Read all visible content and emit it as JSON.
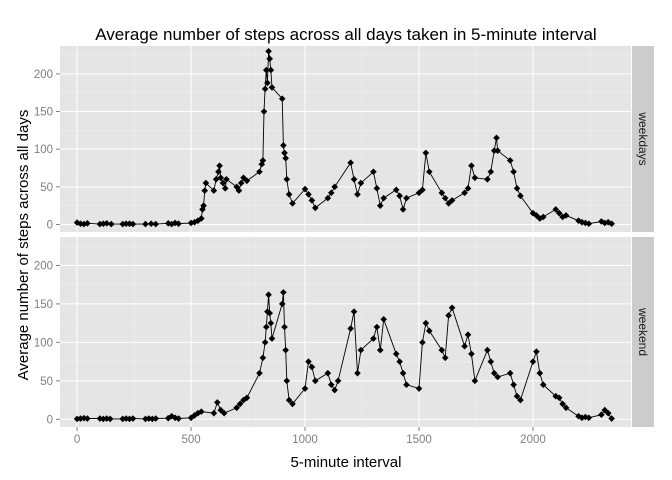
{
  "chart_data": {
    "type": "line",
    "title": "Average number of steps across all days taken in 5-minute interval",
    "xlabel": "5-minute interval",
    "ylabel": "Average number of steps across all days",
    "xlim": [
      -75,
      2430
    ],
    "ylim": [
      -10,
      237
    ],
    "x_ticks": [
      0,
      500,
      1000,
      1500,
      2000
    ],
    "y_ticks": [
      0,
      50,
      100,
      150,
      200
    ],
    "grid": true,
    "markers": "diamond",
    "colors": {
      "panel_bg": "#e5e5e5",
      "grid": "#f2f2f2",
      "strip_bg": "#cccccc",
      "line": "#000000"
    },
    "panels": [
      {
        "name": "weekdays",
        "points": [
          [
            0,
            2.5
          ],
          [
            15,
            1
          ],
          [
            30,
            0.5
          ],
          [
            45,
            1.5
          ],
          [
            100,
            0.5
          ],
          [
            115,
            1
          ],
          [
            130,
            1.5
          ],
          [
            150,
            0.5
          ],
          [
            200,
            0.5
          ],
          [
            215,
            1
          ],
          [
            230,
            1
          ],
          [
            245,
            0.5
          ],
          [
            300,
            0.5
          ],
          [
            325,
            1
          ],
          [
            345,
            0.5
          ],
          [
            400,
            1.5
          ],
          [
            415,
            0.5
          ],
          [
            430,
            2
          ],
          [
            445,
            1
          ],
          [
            500,
            2
          ],
          [
            515,
            3
          ],
          [
            530,
            5
          ],
          [
            545,
            8
          ],
          [
            550,
            20
          ],
          [
            555,
            25
          ],
          [
            560,
            45
          ],
          [
            565,
            55
          ],
          [
            600,
            45
          ],
          [
            610,
            60
          ],
          [
            620,
            70
          ],
          [
            625,
            78
          ],
          [
            630,
            62
          ],
          [
            640,
            55
          ],
          [
            650,
            48
          ],
          [
            655,
            60
          ],
          [
            700,
            50
          ],
          [
            710,
            45
          ],
          [
            720,
            55
          ],
          [
            730,
            62
          ],
          [
            745,
            58
          ],
          [
            800,
            70
          ],
          [
            810,
            80
          ],
          [
            815,
            85
          ],
          [
            820,
            150
          ],
          [
            825,
            180
          ],
          [
            830,
            205
          ],
          [
            835,
            188
          ],
          [
            840,
            230
          ],
          [
            845,
            220
          ],
          [
            850,
            205
          ],
          [
            855,
            182
          ],
          [
            900,
            167
          ],
          [
            905,
            105
          ],
          [
            910,
            95
          ],
          [
            915,
            88
          ],
          [
            920,
            60
          ],
          [
            930,
            40
          ],
          [
            945,
            28
          ],
          [
            1000,
            47
          ],
          [
            1015,
            40
          ],
          [
            1030,
            32
          ],
          [
            1045,
            22
          ],
          [
            1100,
            35
          ],
          [
            1115,
            42
          ],
          [
            1130,
            50
          ],
          [
            1200,
            82
          ],
          [
            1215,
            60
          ],
          [
            1230,
            40
          ],
          [
            1245,
            55
          ],
          [
            1300,
            70
          ],
          [
            1315,
            48
          ],
          [
            1330,
            25
          ],
          [
            1345,
            35
          ],
          [
            1400,
            46
          ],
          [
            1415,
            38
          ],
          [
            1430,
            20
          ],
          [
            1445,
            35
          ],
          [
            1500,
            42
          ],
          [
            1515,
            46
          ],
          [
            1530,
            95
          ],
          [
            1545,
            70
          ],
          [
            1600,
            42
          ],
          [
            1615,
            35
          ],
          [
            1630,
            28
          ],
          [
            1645,
            32
          ],
          [
            1700,
            42
          ],
          [
            1715,
            48
          ],
          [
            1730,
            78
          ],
          [
            1745,
            62
          ],
          [
            1800,
            60
          ],
          [
            1815,
            70
          ],
          [
            1830,
            98
          ],
          [
            1840,
            115
          ],
          [
            1845,
            98
          ],
          [
            1900,
            85
          ],
          [
            1915,
            70
          ],
          [
            1930,
            48
          ],
          [
            1945,
            38
          ],
          [
            2000,
            15
          ],
          [
            2015,
            12
          ],
          [
            2030,
            8
          ],
          [
            2045,
            10
          ],
          [
            2100,
            20
          ],
          [
            2115,
            15
          ],
          [
            2130,
            10
          ],
          [
            2145,
            12
          ],
          [
            2200,
            5
          ],
          [
            2215,
            3
          ],
          [
            2230,
            2
          ],
          [
            2245,
            1
          ],
          [
            2300,
            4
          ],
          [
            2315,
            2
          ],
          [
            2330,
            3
          ],
          [
            2345,
            1
          ]
        ]
      },
      {
        "name": "weekend",
        "points": [
          [
            0,
            0.5
          ],
          [
            15,
            1
          ],
          [
            30,
            1.5
          ],
          [
            45,
            1
          ],
          [
            100,
            1
          ],
          [
            115,
            0.5
          ],
          [
            130,
            1
          ],
          [
            145,
            0.5
          ],
          [
            200,
            0.5
          ],
          [
            215,
            1
          ],
          [
            230,
            0.5
          ],
          [
            245,
            1
          ],
          [
            300,
            0.5
          ],
          [
            315,
            1
          ],
          [
            330,
            0.5
          ],
          [
            345,
            1
          ],
          [
            400,
            1.5
          ],
          [
            415,
            4
          ],
          [
            430,
            2
          ],
          [
            445,
            1
          ],
          [
            500,
            2
          ],
          [
            515,
            5
          ],
          [
            530,
            8
          ],
          [
            545,
            10
          ],
          [
            600,
            8
          ],
          [
            615,
            22
          ],
          [
            630,
            12
          ],
          [
            645,
            8
          ],
          [
            700,
            15
          ],
          [
            715,
            20
          ],
          [
            730,
            25
          ],
          [
            745,
            28
          ],
          [
            800,
            60
          ],
          [
            815,
            80
          ],
          [
            825,
            100
          ],
          [
            830,
            120
          ],
          [
            835,
            140
          ],
          [
            840,
            162
          ],
          [
            845,
            138
          ],
          [
            850,
            125
          ],
          [
            855,
            105
          ],
          [
            900,
            150
          ],
          [
            905,
            165
          ],
          [
            910,
            120
          ],
          [
            915,
            90
          ],
          [
            920,
            50
          ],
          [
            930,
            25
          ],
          [
            945,
            20
          ],
          [
            1000,
            40
          ],
          [
            1015,
            75
          ],
          [
            1030,
            68
          ],
          [
            1045,
            50
          ],
          [
            1100,
            60
          ],
          [
            1115,
            45
          ],
          [
            1130,
            38
          ],
          [
            1145,
            50
          ],
          [
            1200,
            118
          ],
          [
            1215,
            140
          ],
          [
            1230,
            60
          ],
          [
            1245,
            90
          ],
          [
            1300,
            105
          ],
          [
            1315,
            120
          ],
          [
            1330,
            90
          ],
          [
            1345,
            130
          ],
          [
            1400,
            85
          ],
          [
            1415,
            75
          ],
          [
            1430,
            60
          ],
          [
            1445,
            45
          ],
          [
            1500,
            40
          ],
          [
            1515,
            100
          ],
          [
            1530,
            125
          ],
          [
            1545,
            115
          ],
          [
            1600,
            90
          ],
          [
            1615,
            80
          ],
          [
            1630,
            135
          ],
          [
            1645,
            145
          ],
          [
            1700,
            95
          ],
          [
            1715,
            110
          ],
          [
            1730,
            85
          ],
          [
            1745,
            50
          ],
          [
            1800,
            90
          ],
          [
            1815,
            75
          ],
          [
            1830,
            60
          ],
          [
            1845,
            55
          ],
          [
            1900,
            60
          ],
          [
            1915,
            45
          ],
          [
            1930,
            30
          ],
          [
            1945,
            25
          ],
          [
            2000,
            75
          ],
          [
            2015,
            88
          ],
          [
            2030,
            60
          ],
          [
            2045,
            45
          ],
          [
            2100,
            30
          ],
          [
            2115,
            28
          ],
          [
            2130,
            20
          ],
          [
            2145,
            15
          ],
          [
            2200,
            4
          ],
          [
            2215,
            2
          ],
          [
            2230,
            3
          ],
          [
            2245,
            2
          ],
          [
            2300,
            6
          ],
          [
            2315,
            12
          ],
          [
            2330,
            8
          ],
          [
            2345,
            1
          ]
        ]
      }
    ]
  }
}
